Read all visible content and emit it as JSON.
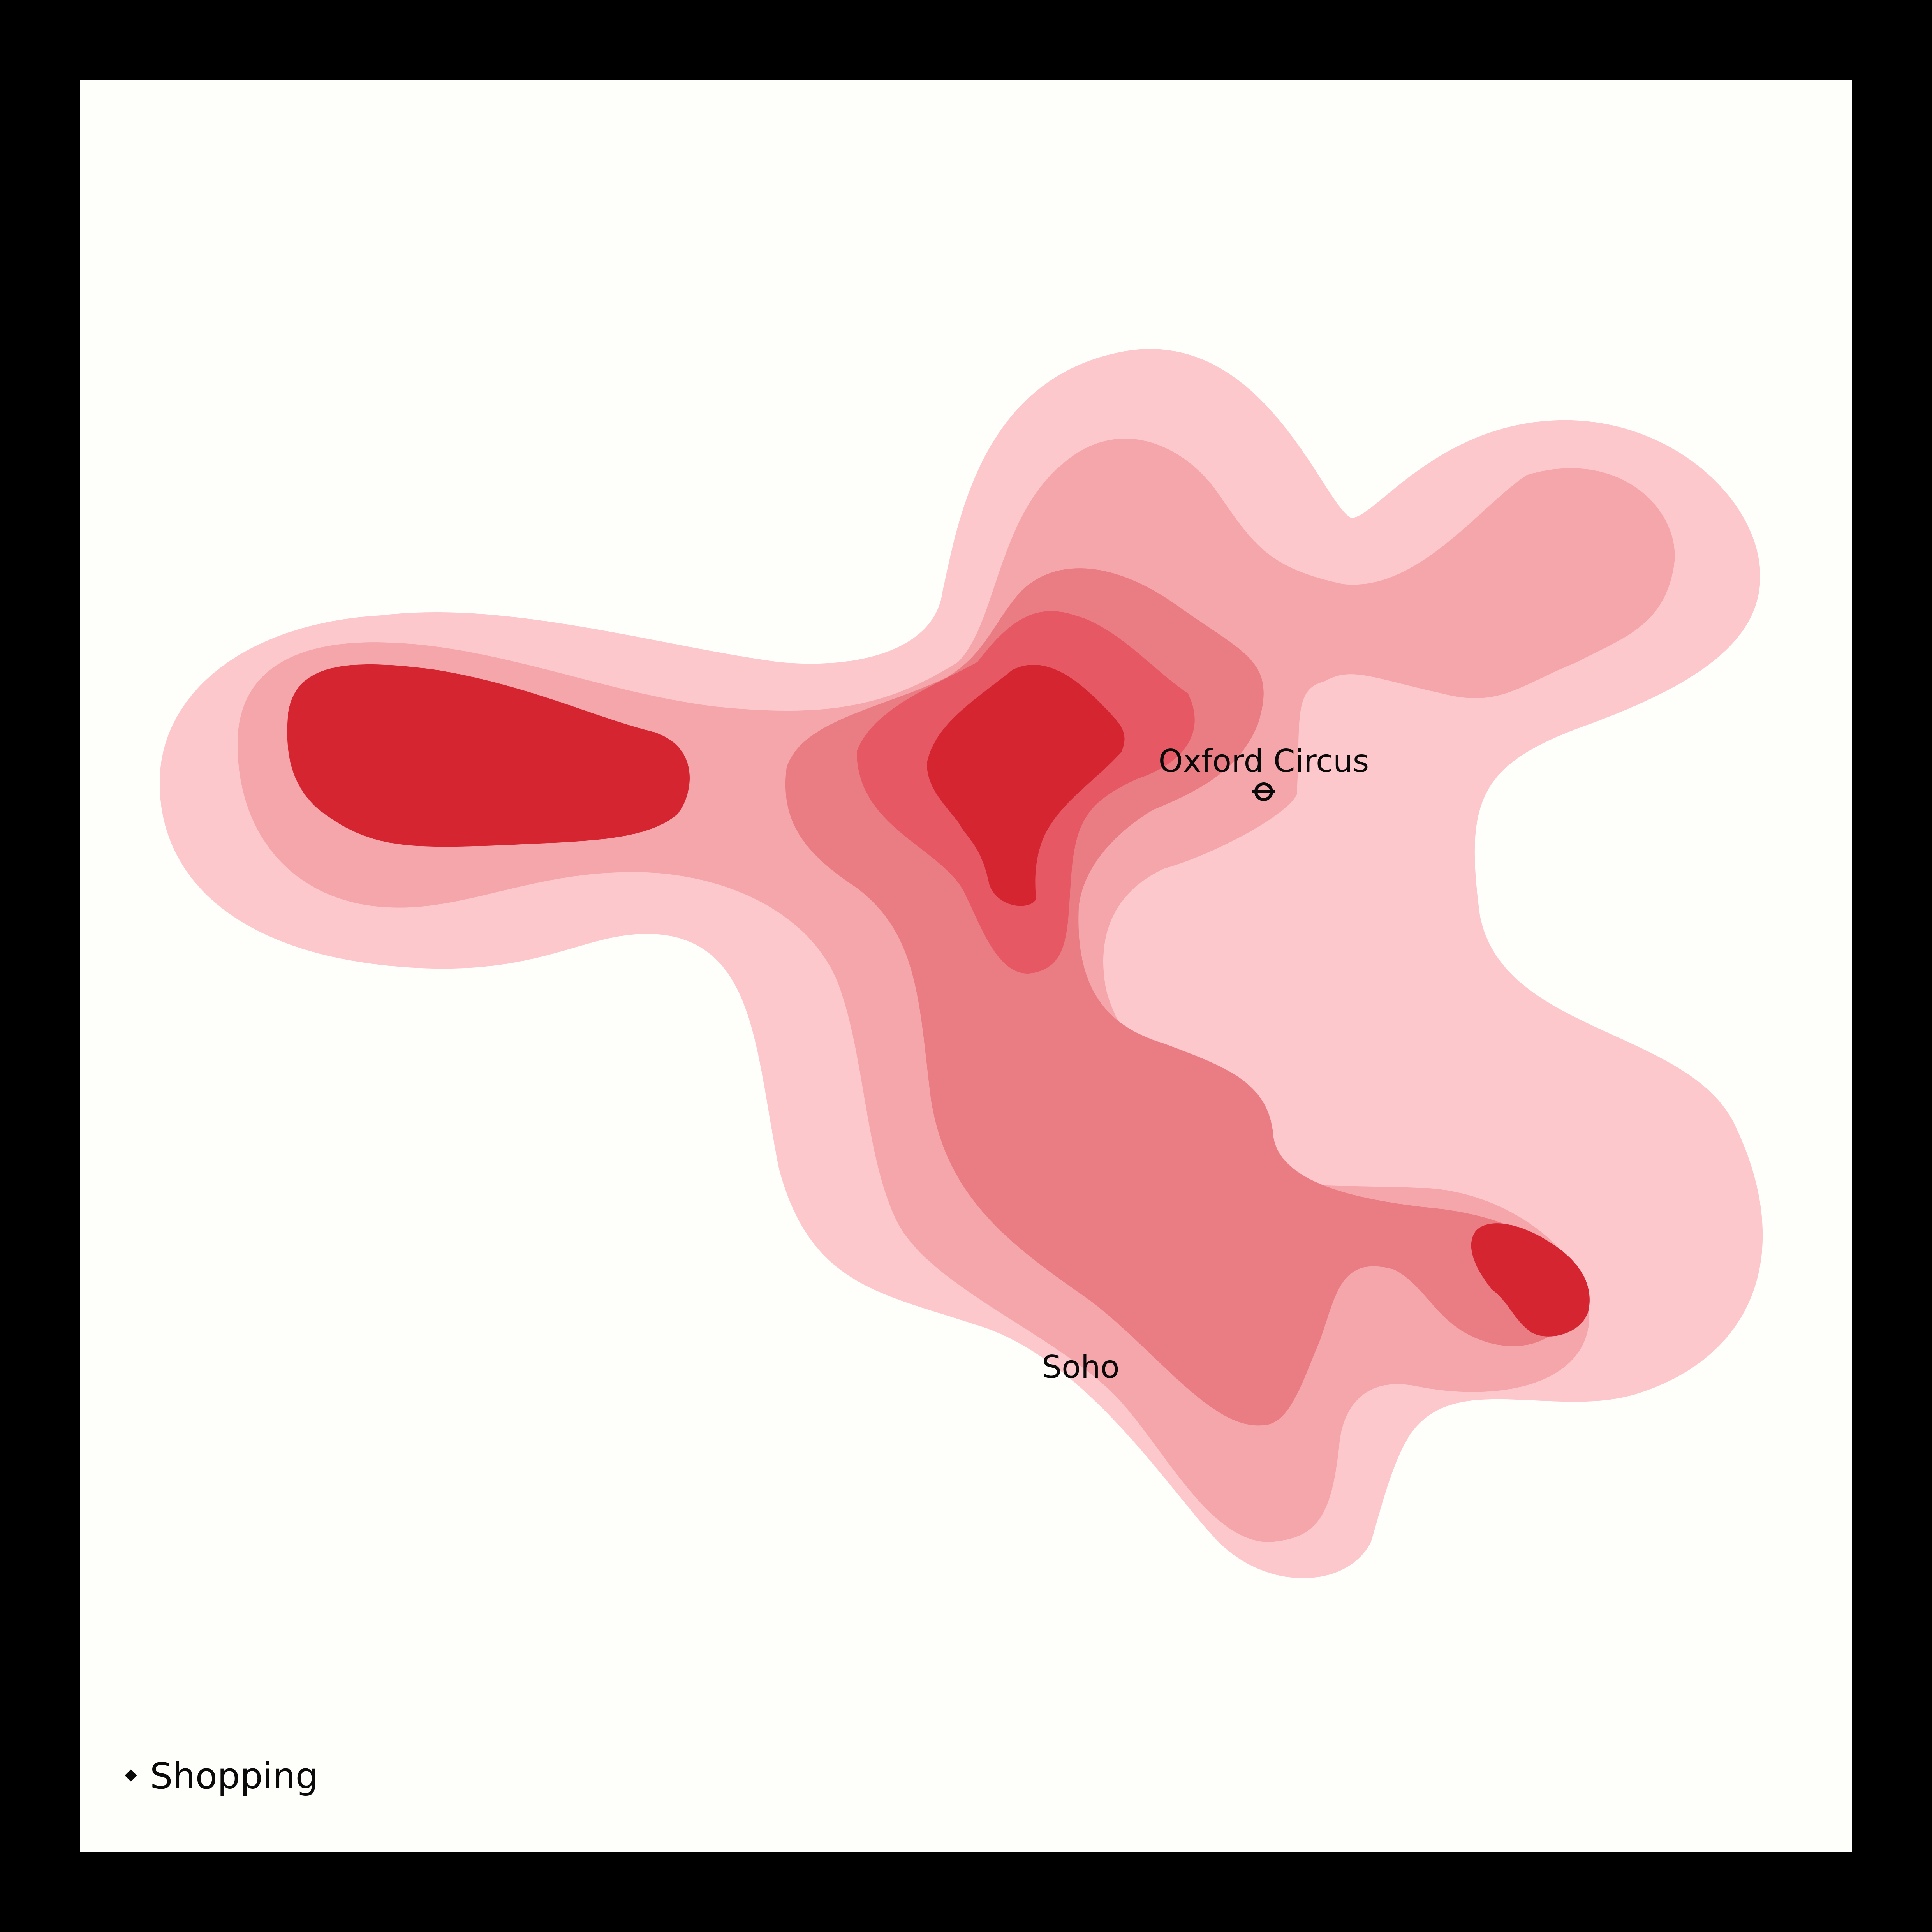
{
  "map": {
    "background_color": "#fefefa",
    "frame_color": "#000000",
    "density_colors": [
      "#fdc8cc",
      "#f4a6ab",
      "#ea7c84",
      "#e55864",
      "#d42531"
    ],
    "labels": {
      "oxford_circus": "Oxford Circus",
      "soho": "Soho"
    },
    "station_icon": "underground-roundel-icon"
  },
  "legend": {
    "marker_icon": "diamond-icon",
    "label": "Shopping"
  }
}
